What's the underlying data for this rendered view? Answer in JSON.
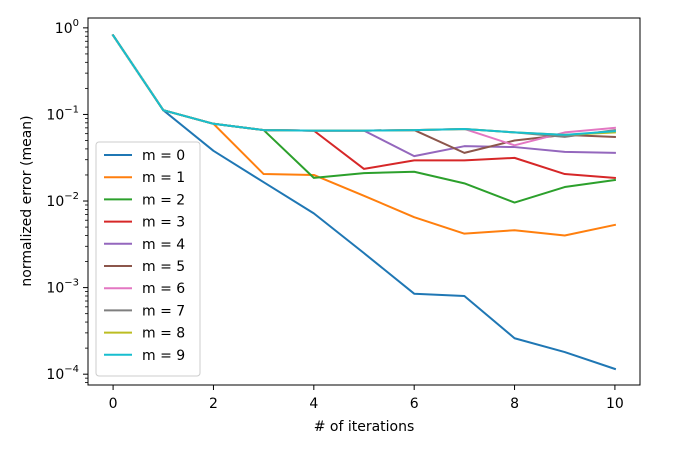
{
  "chart_data": {
    "type": "line",
    "xlabel": "# of iterations",
    "ylabel": "normalized error (mean)",
    "yscale": "log",
    "xlim": [
      -0.5,
      10.5
    ],
    "ylim": [
      7.5e-05,
      1.3
    ],
    "x_ticks": [
      0,
      2,
      4,
      6,
      8,
      10
    ],
    "y_ticks": [
      {
        "value": 1,
        "base": "10",
        "exp": "0"
      },
      {
        "value": 0.1,
        "base": "10",
        "exp": "−1"
      },
      {
        "value": 0.01,
        "base": "10",
        "exp": "−2"
      },
      {
        "value": 0.001,
        "base": "10",
        "exp": "−3"
      },
      {
        "value": 0.0001,
        "base": "10",
        "exp": "−4"
      }
    ],
    "grid": false,
    "legend_position": "center-left",
    "x": [
      0,
      1,
      2,
      3,
      4,
      5,
      6,
      7,
      8,
      9,
      10
    ],
    "series": [
      {
        "name": "m = 0",
        "color": "#1f77b4",
        "values": [
          0.82,
          0.112,
          0.038,
          0.0165,
          0.0072,
          0.0025,
          0.00085,
          0.0008,
          0.00026,
          0.00018,
          0.000115
        ]
      },
      {
        "name": "m = 1",
        "color": "#ff7f0e",
        "values": [
          0.82,
          0.112,
          0.078,
          0.0205,
          0.02,
          0.0115,
          0.0065,
          0.0042,
          0.0046,
          0.004,
          0.0053
        ]
      },
      {
        "name": "m = 2",
        "color": "#2ca02c",
        "values": [
          0.82,
          0.112,
          0.078,
          0.066,
          0.0185,
          0.021,
          0.0218,
          0.016,
          0.0096,
          0.0145,
          0.0175
        ]
      },
      {
        "name": "m = 3",
        "color": "#d62728",
        "values": [
          0.82,
          0.112,
          0.078,
          0.066,
          0.065,
          0.0235,
          0.0295,
          0.0295,
          0.0315,
          0.0205,
          0.0185
        ]
      },
      {
        "name": "m = 4",
        "color": "#9467bd",
        "values": [
          0.82,
          0.112,
          0.078,
          0.066,
          0.065,
          0.065,
          0.033,
          0.043,
          0.042,
          0.037,
          0.036
        ]
      },
      {
        "name": "m = 5",
        "color": "#8c564b",
        "values": [
          0.82,
          0.112,
          0.078,
          0.066,
          0.065,
          0.065,
          0.066,
          0.036,
          0.05,
          0.058,
          0.055
        ]
      },
      {
        "name": "m = 6",
        "color": "#e377c2",
        "values": [
          0.82,
          0.112,
          0.078,
          0.066,
          0.065,
          0.065,
          0.066,
          0.068,
          0.044,
          0.062,
          0.07
        ]
      },
      {
        "name": "m = 7",
        "color": "#7f7f7f",
        "values": [
          0.82,
          0.112,
          0.078,
          0.066,
          0.065,
          0.065,
          0.066,
          0.068,
          0.062,
          0.055,
          0.066
        ]
      },
      {
        "name": "m = 8",
        "color": "#bcbd22",
        "values": [
          0.82,
          0.112,
          0.078,
          0.066,
          0.065,
          0.065,
          0.066,
          0.068,
          0.062,
          0.058,
          0.062
        ]
      },
      {
        "name": "m = 9",
        "color": "#17becf",
        "values": [
          0.82,
          0.112,
          0.078,
          0.066,
          0.065,
          0.065,
          0.066,
          0.068,
          0.062,
          0.058,
          0.064
        ]
      }
    ]
  }
}
